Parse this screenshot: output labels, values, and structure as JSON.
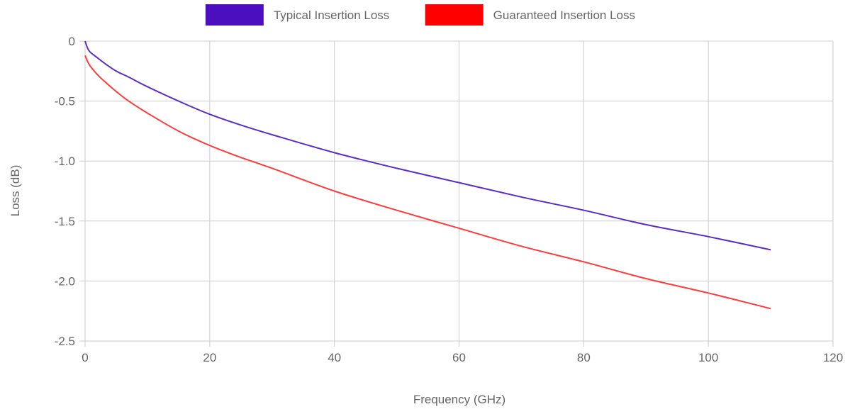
{
  "chart_data": {
    "type": "line",
    "xlabel": "Frequency (GHz)",
    "ylabel": "Loss (dB)",
    "xlim": [
      0,
      120
    ],
    "ylim": [
      -2.5,
      0
    ],
    "x_ticks": [
      "0",
      "20",
      "40",
      "60",
      "80",
      "100",
      "120"
    ],
    "y_ticks": [
      "0",
      "-0.5",
      "-1.0",
      "-1.5",
      "-2.0",
      "-2.5"
    ],
    "grid": true,
    "legend_position": "top",
    "series": [
      {
        "name": "Typical Insertion Loss",
        "color": "#5b2dc7",
        "legend_color": "#4b0fbf",
        "x": [
          0,
          0.5,
          1,
          2,
          3,
          5,
          7,
          10,
          15,
          20,
          25,
          30,
          40,
          50,
          60,
          70,
          80,
          90,
          100,
          110
        ],
        "y": [
          0,
          -0.07,
          -0.1,
          -0.14,
          -0.18,
          -0.25,
          -0.3,
          -0.38,
          -0.5,
          -0.61,
          -0.7,
          -0.78,
          -0.93,
          -1.06,
          -1.18,
          -1.3,
          -1.41,
          -1.53,
          -1.63,
          -1.74
        ]
      },
      {
        "name": "Guaranteed Insertion Loss",
        "color": "#ff3c3c",
        "legend_color": "#ff0000",
        "x": [
          0,
          0.5,
          1,
          2,
          3,
          5,
          7,
          10,
          15,
          20,
          25,
          30,
          40,
          50,
          60,
          70,
          80,
          90,
          100,
          110
        ],
        "y": [
          -0.12,
          -0.18,
          -0.22,
          -0.28,
          -0.33,
          -0.42,
          -0.5,
          -0.6,
          -0.75,
          -0.87,
          -0.97,
          -1.06,
          -1.25,
          -1.41,
          -1.56,
          -1.71,
          -1.84,
          -1.98,
          -2.1,
          -2.23
        ]
      }
    ]
  }
}
